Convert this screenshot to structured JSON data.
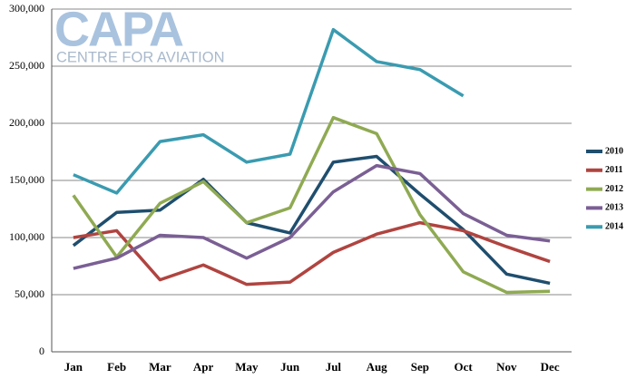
{
  "chart_data": {
    "type": "line",
    "annotations": [
      "CAPA",
      "CENTRE FOR AVIATION"
    ],
    "categories": [
      "Jan",
      "Feb",
      "Mar",
      "Apr",
      "May",
      "Jun",
      "Jul",
      "Aug",
      "Sep",
      "Oct",
      "Nov",
      "Dec"
    ],
    "series": [
      {
        "name": "2010",
        "color": "#1f4e6e",
        "values": [
          93000,
          122000,
          124000,
          151000,
          113000,
          104000,
          166000,
          171000,
          138000,
          107000,
          68000,
          60000
        ]
      },
      {
        "name": "2011",
        "color": "#b04440",
        "values": [
          100000,
          106000,
          63000,
          76000,
          59000,
          61000,
          87000,
          103000,
          113000,
          106000,
          92000,
          79000
        ]
      },
      {
        "name": "2012",
        "color": "#8faa52",
        "values": [
          137000,
          83000,
          130000,
          149000,
          113000,
          126000,
          205000,
          191000,
          120000,
          70000,
          52000,
          53000
        ]
      },
      {
        "name": "2013",
        "color": "#7a5f94",
        "values": [
          73000,
          82000,
          102000,
          100000,
          82000,
          100000,
          140000,
          163000,
          156000,
          121000,
          102000,
          97000
        ]
      },
      {
        "name": "2014",
        "color": "#3a9bb0",
        "values": [
          155000,
          139000,
          184000,
          190000,
          166000,
          173000,
          282000,
          254000,
          247000,
          224000,
          null,
          null
        ]
      }
    ],
    "ylim": [
      0,
      300000
    ],
    "yticks": [
      0,
      {
        "value": 50000,
        "label": "50,000"
      },
      {
        "value": 100000,
        "label": "100,000"
      },
      {
        "value": 150000,
        "label": "150,000"
      },
      {
        "value": 200000,
        "label": "200,000"
      },
      {
        "value": 250000,
        "label": "250,000"
      },
      {
        "value": 300000,
        "label": "300,000"
      }
    ],
    "grid": true,
    "legend": "right"
  }
}
